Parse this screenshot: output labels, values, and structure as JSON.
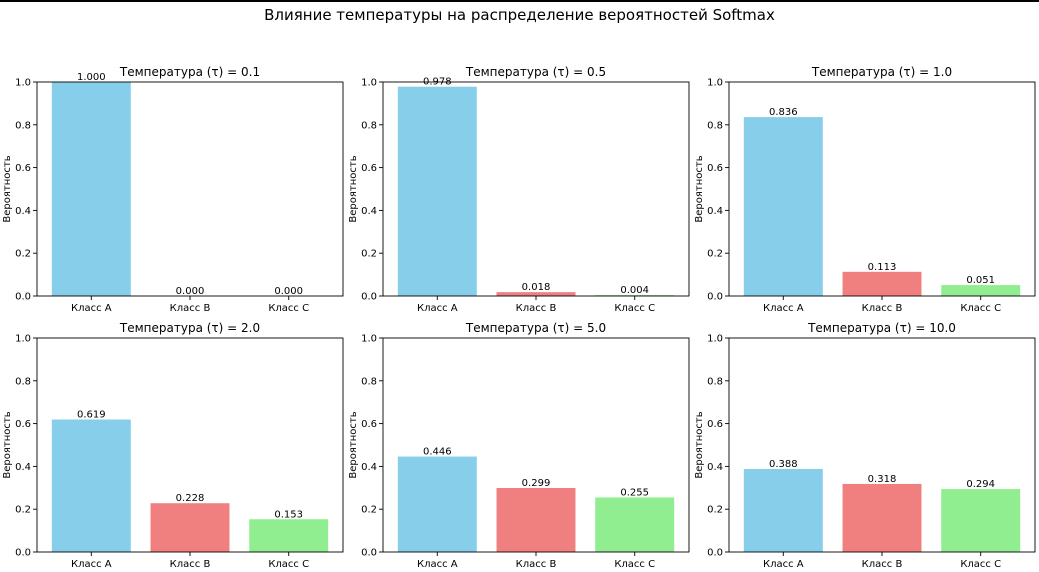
{
  "figure": {
    "suptitle": "Влияние температуры на распределение вероятностей Softmax"
  },
  "colors": {
    "series": [
      "#87ceeb",
      "#f08080",
      "#90ee90"
    ],
    "axis": "#000000"
  },
  "chart_data": [
    {
      "type": "bar",
      "title": "Температура (τ) = 0.1",
      "categories": [
        "Класс A",
        "Класс B",
        "Класс C"
      ],
      "values": [
        1.0,
        0.0,
        0.0
      ],
      "value_labels": [
        "1.000",
        "0.000",
        "0.000"
      ],
      "xlabel": "",
      "ylabel": "Вероятность",
      "ylim": [
        0,
        1.0
      ],
      "yticks": [
        "0.0",
        "0.2",
        "0.4",
        "0.6",
        "0.8",
        "1.0"
      ]
    },
    {
      "type": "bar",
      "title": "Температура (τ) = 0.5",
      "categories": [
        "Класс A",
        "Класс B",
        "Класс C"
      ],
      "values": [
        0.978,
        0.018,
        0.004
      ],
      "value_labels": [
        "0.978",
        "0.018",
        "0.004"
      ],
      "xlabel": "",
      "ylabel": "Вероятность",
      "ylim": [
        0,
        1.0
      ],
      "yticks": [
        "0.0",
        "0.2",
        "0.4",
        "0.6",
        "0.8",
        "1.0"
      ]
    },
    {
      "type": "bar",
      "title": "Температура (τ) = 1.0",
      "categories": [
        "Класс A",
        "Класс B",
        "Класс C"
      ],
      "values": [
        0.836,
        0.113,
        0.051
      ],
      "value_labels": [
        "0.836",
        "0.113",
        "0.051"
      ],
      "xlabel": "",
      "ylabel": "Вероятность",
      "ylim": [
        0,
        1.0
      ],
      "yticks": [
        "0.0",
        "0.2",
        "0.4",
        "0.6",
        "0.8",
        "1.0"
      ]
    },
    {
      "type": "bar",
      "title": "Температура (τ) = 2.0",
      "categories": [
        "Класс A",
        "Класс B",
        "Класс C"
      ],
      "values": [
        0.619,
        0.228,
        0.153
      ],
      "value_labels": [
        "0.619",
        "0.228",
        "0.153"
      ],
      "xlabel": "",
      "ylabel": "Вероятность",
      "ylim": [
        0,
        1.0
      ],
      "yticks": [
        "0.0",
        "0.2",
        "0.4",
        "0.6",
        "0.8",
        "1.0"
      ]
    },
    {
      "type": "bar",
      "title": "Температура (τ) = 5.0",
      "categories": [
        "Класс A",
        "Класс B",
        "Класс C"
      ],
      "values": [
        0.446,
        0.299,
        0.255
      ],
      "value_labels": [
        "0.446",
        "0.299",
        "0.255"
      ],
      "xlabel": "",
      "ylabel": "Вероятность",
      "ylim": [
        0,
        1.0
      ],
      "yticks": [
        "0.0",
        "0.2",
        "0.4",
        "0.6",
        "0.8",
        "1.0"
      ]
    },
    {
      "type": "bar",
      "title": "Температура (τ) = 10.0",
      "categories": [
        "Класс A",
        "Класс B",
        "Класс C"
      ],
      "values": [
        0.388,
        0.318,
        0.294
      ],
      "value_labels": [
        "0.388",
        "0.318",
        "0.294"
      ],
      "xlabel": "",
      "ylabel": "Вероятность",
      "ylim": [
        0,
        1.0
      ],
      "yticks": [
        "0.0",
        "0.2",
        "0.4",
        "0.6",
        "0.8",
        "1.0"
      ]
    }
  ]
}
